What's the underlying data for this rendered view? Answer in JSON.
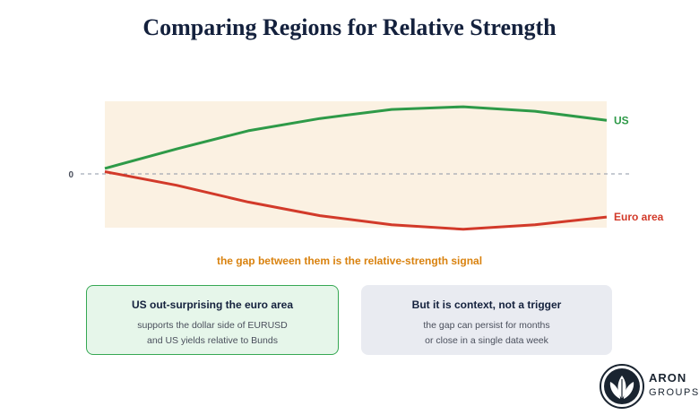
{
  "title": "Comparing Regions for Relative Strength",
  "chart_data": {
    "type": "line",
    "zero_label": "0",
    "series": [
      {
        "name": "US",
        "color": "#2e9a48",
        "values": [
          0.12,
          0.55,
          0.95,
          1.22,
          1.42,
          1.48,
          1.38,
          1.18
        ]
      },
      {
        "name": "Euro area",
        "color": "#d23a2a",
        "values": [
          0.05,
          -0.25,
          -0.62,
          -0.92,
          -1.12,
          -1.22,
          -1.12,
          -0.95
        ]
      }
    ],
    "ylim": [
      -1.25,
      1.6
    ],
    "band_color": "#fbf1e2"
  },
  "gap_note": "the gap between them is the relative-strength signal",
  "cards": [
    {
      "title": "US out-surprising the euro area",
      "lines": [
        "supports the dollar side of EURUSD",
        "and US yields relative to Bunds"
      ]
    },
    {
      "title": "But it is context, not a trigger",
      "lines": [
        "the gap can persist for months",
        "or close in a single data week"
      ]
    }
  ],
  "logo": {
    "name": "ARON",
    "sub": "GROUPS",
    "icon": "aron-leaf-icon"
  }
}
